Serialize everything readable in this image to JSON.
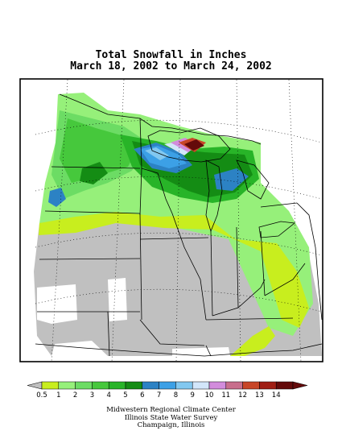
{
  "title": {
    "line1": "Total Snowfall in Inches",
    "line2": "March 18, 2002 to March 24, 2002"
  },
  "map": {
    "no_data_color": "#c0c0c0",
    "background_color": "#ffffff"
  },
  "legend": {
    "labels": [
      "0.5",
      "1",
      "2",
      "3",
      "4",
      "5",
      "6",
      "7",
      "8",
      "9",
      "10",
      "11",
      "12",
      "13",
      "14"
    ],
    "colors": [
      "#c8ee1e",
      "#96f07a",
      "#6cdc64",
      "#46c83c",
      "#28b428",
      "#148c14",
      "#2c82c4",
      "#3ca0e6",
      "#82c8f0",
      "#d2e6fa",
      "#d28cdc",
      "#c86e8c",
      "#c84628",
      "#a01e14",
      "#640a0a"
    ],
    "under_color": "#c0c0c0"
  },
  "credits": {
    "line1": "Midwestern Regional Climate Center",
    "line2": "Illinois State Water Survey",
    "line3": "Champaign, Illinois"
  }
}
